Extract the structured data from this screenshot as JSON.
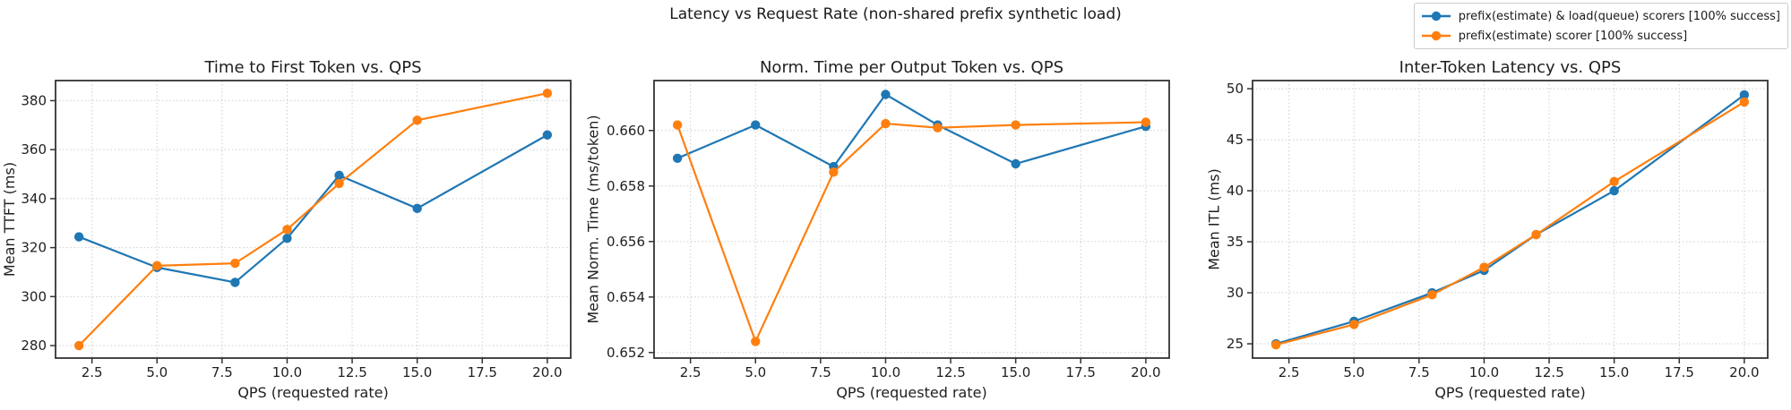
{
  "figure": {
    "title": "Latency vs Request Rate (non-shared prefix synthetic load)"
  },
  "legend": {
    "position": "top-right",
    "items": [
      {
        "label": "prefix(estimate) & load(queue) scorers [100% success]",
        "color": "#1f77b4"
      },
      {
        "label": "prefix(estimate) scorer [100% success]",
        "color": "#ff7f0e"
      }
    ]
  },
  "chart_data": [
    {
      "id": "ttft",
      "type": "line",
      "title": "Time to First Token vs. QPS",
      "xlabel": "QPS (requested rate)",
      "ylabel": "Mean TTFT (ms)",
      "x": [
        2,
        5,
        8,
        10,
        12,
        15,
        20
      ],
      "series": [
        {
          "name": "prefix(estimate) & load(queue) scorers [100% success]",
          "color": "#1f77b4",
          "values": [
            324.4,
            311.9,
            305.8,
            323.8,
            349.5,
            336.0,
            366.0
          ]
        },
        {
          "name": "prefix(estimate) scorer [100% success]",
          "color": "#ff7f0e",
          "values": [
            280.0,
            312.6,
            313.6,
            327.4,
            346.2,
            372.0,
            383.0
          ]
        }
      ],
      "xlim": [
        1.1,
        20.9
      ],
      "ylim": [
        274.9,
        388.2
      ],
      "xticks": [
        2.5,
        5,
        7.5,
        10,
        12.5,
        15,
        17.5,
        20
      ],
      "xtick_labels": [
        "2.5",
        "5.0",
        "7.5",
        "10.0",
        "12.5",
        "15.0",
        "17.5",
        "20.0"
      ],
      "yticks": [
        280,
        300,
        320,
        340,
        360,
        380
      ],
      "ytick_labels": [
        "280",
        "300",
        "320",
        "340",
        "360",
        "380"
      ],
      "grid": true
    },
    {
      "id": "ntpot",
      "type": "line",
      "title": "Norm. Time per Output Token vs. QPS",
      "xlabel": "QPS (requested rate)",
      "ylabel": "Mean Norm. Time (ms/token)",
      "x": [
        2,
        5,
        8,
        10,
        12,
        15,
        20
      ],
      "series": [
        {
          "name": "prefix(estimate) & load(queue) scorers [100% success]",
          "color": "#1f77b4",
          "values": [
            0.659,
            0.6602,
            0.6587,
            0.6613,
            0.6602,
            0.6588,
            0.66015
          ]
        },
        {
          "name": "prefix(estimate) scorer [100% success]",
          "color": "#ff7f0e",
          "values": [
            0.6602,
            0.6524,
            0.6585,
            0.66025,
            0.6601,
            0.6602,
            0.6603
          ]
        }
      ],
      "xlim": [
        1.1,
        20.9
      ],
      "ylim": [
        0.6518,
        0.6618
      ],
      "xticks": [
        2.5,
        5,
        7.5,
        10,
        12.5,
        15,
        17.5,
        20
      ],
      "xtick_labels": [
        "2.5",
        "5.0",
        "7.5",
        "10.0",
        "12.5",
        "15.0",
        "17.5",
        "20.0"
      ],
      "yticks": [
        0.652,
        0.654,
        0.656,
        0.658,
        0.66
      ],
      "ytick_labels": [
        "0.652",
        "0.654",
        "0.656",
        "0.658",
        "0.660"
      ],
      "grid": true
    },
    {
      "id": "itl",
      "type": "line",
      "title": "Inter-Token Latency vs. QPS",
      "xlabel": "QPS (requested rate)",
      "ylabel": "Mean ITL (ms)",
      "x": [
        2,
        5,
        8,
        10,
        12,
        15,
        20
      ],
      "series": [
        {
          "name": "prefix(estimate) & load(queue) scorers [100% success]",
          "color": "#1f77b4",
          "values": [
            25.0,
            27.2,
            30.0,
            32.2,
            35.7,
            40.0,
            49.4
          ]
        },
        {
          "name": "prefix(estimate) scorer [100% success]",
          "color": "#ff7f0e",
          "values": [
            24.9,
            26.9,
            29.8,
            32.5,
            35.7,
            40.9,
            48.7
          ]
        }
      ],
      "xlim": [
        1.1,
        20.9
      ],
      "ylim": [
        23.6,
        50.8
      ],
      "xticks": [
        2.5,
        5,
        7.5,
        10,
        12.5,
        15,
        17.5,
        20
      ],
      "xtick_labels": [
        "2.5",
        "5.0",
        "7.5",
        "10.0",
        "12.5",
        "15.0",
        "17.5",
        "20.0"
      ],
      "yticks": [
        25,
        30,
        35,
        40,
        45,
        50
      ],
      "ytick_labels": [
        "25",
        "30",
        "35",
        "40",
        "45",
        "50"
      ],
      "grid": true
    }
  ]
}
